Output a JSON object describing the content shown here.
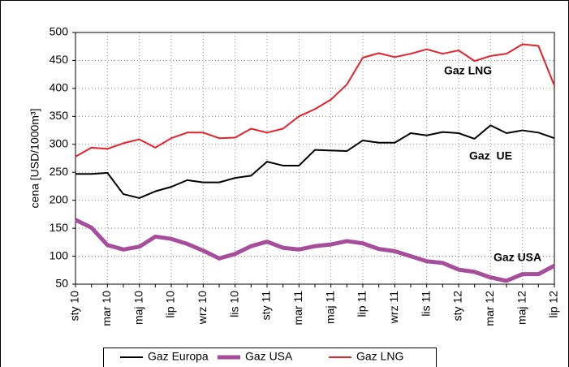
{
  "chart_data": {
    "type": "line",
    "ylabel": "cena [USD/1000m³]",
    "categories": [
      "sty 10",
      null,
      "mar 10",
      null,
      "maj 10",
      null,
      "lip 10",
      null,
      "wrz 10",
      null,
      "lis 10",
      null,
      "sty 11",
      null,
      "mar 11",
      null,
      "maj 11",
      null,
      "lip 11",
      null,
      "wrz 11",
      null,
      "lis 11",
      null,
      "sty 12",
      null,
      "mar 12",
      null,
      "maj 12",
      null,
      "lip 12"
    ],
    "series": [
      {
        "name": "Gaz Europa",
        "color": "#000000",
        "values": [
          247,
          247,
          249,
          211,
          204,
          216,
          224,
          236,
          232,
          232,
          240,
          244,
          269,
          262,
          262,
          290,
          289,
          288,
          307,
          303,
          303,
          320,
          316,
          322,
          320,
          310,
          334,
          320,
          325,
          321,
          311
        ]
      },
      {
        "name": "Gaz USA",
        "color": "#a64d9c",
        "values": [
          165,
          151,
          120,
          112,
          117,
          135,
          131,
          122,
          110,
          96,
          104,
          118,
          126,
          115,
          112,
          118,
          121,
          127,
          123,
          113,
          109,
          100,
          91,
          88,
          76,
          72,
          62,
          56,
          68,
          68,
          83
        ]
      },
      {
        "name": "Gaz LNG",
        "color": "#e8202a",
        "values": [
          278,
          294,
          292,
          302,
          309,
          294,
          311,
          321,
          321,
          311,
          312,
          328,
          321,
          328,
          350,
          363,
          380,
          407,
          455,
          463,
          456,
          462,
          470,
          462,
          468,
          449,
          458,
          462,
          479,
          476,
          405
        ]
      }
    ],
    "annotations": [
      "Gaz LNG",
      "Gaz  UE",
      "Gaz USA"
    ],
    "ylim": [
      50,
      500
    ],
    "yticks": [
      50,
      100,
      150,
      200,
      250,
      300,
      350,
      400,
      450,
      500
    ],
    "grid": true,
    "legend": "bottom"
  }
}
